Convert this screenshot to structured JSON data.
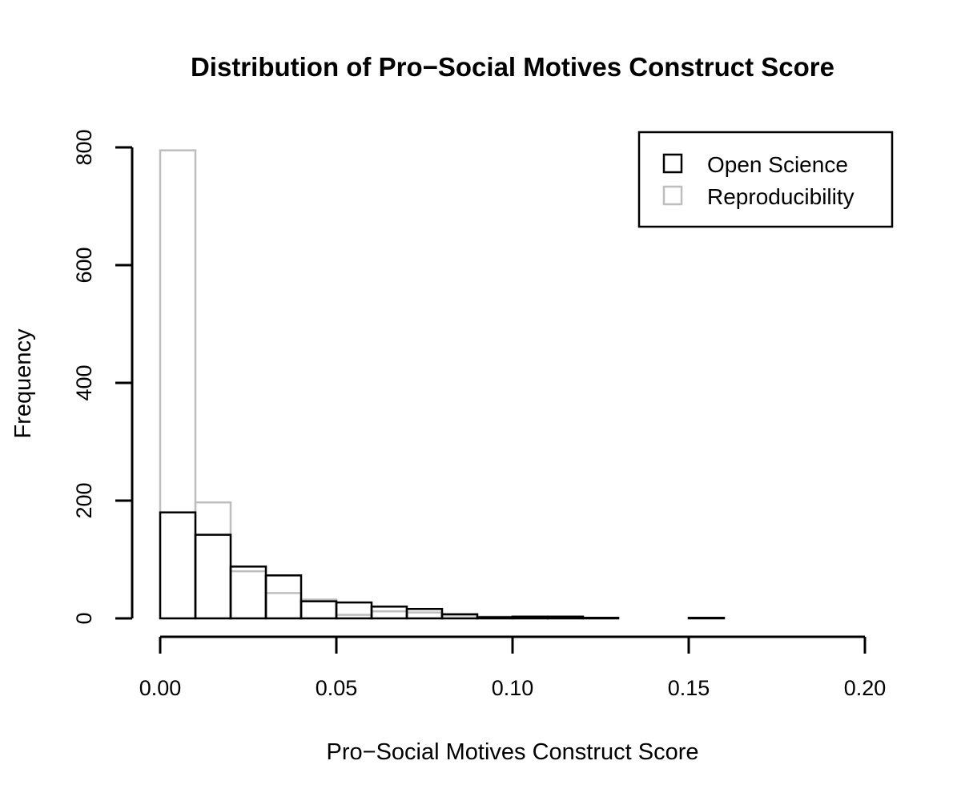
{
  "chart_data": {
    "type": "bar",
    "title": "Distribution of Pro−Social Motives Construct Score",
    "xlabel": "Pro−Social Motives Construct Score",
    "ylabel": "Frequency",
    "xlim": [
      0,
      0.2
    ],
    "ylim": [
      0,
      800
    ],
    "x_ticks": [
      "0.00",
      "0.05",
      "0.10",
      "0.15",
      "0.20"
    ],
    "y_ticks": [
      "0",
      "200",
      "400",
      "600",
      "800"
    ],
    "bin_edges": [
      0.0,
      0.01,
      0.02,
      0.03,
      0.04,
      0.05,
      0.06,
      0.07,
      0.08,
      0.09,
      0.1,
      0.11,
      0.12,
      0.13,
      0.14,
      0.15,
      0.16,
      0.17,
      0.18,
      0.19,
      0.2
    ],
    "series": [
      {
        "name": "Reproducibility",
        "color": "#bebebe",
        "values": [
          795,
          197,
          80,
          43,
          32,
          6,
          12,
          10,
          5,
          3,
          2,
          1,
          1,
          0,
          0,
          0,
          0,
          0,
          0,
          0
        ]
      },
      {
        "name": "Open Science",
        "color": "#000000",
        "values": [
          180,
          142,
          88,
          73,
          29,
          27,
          20,
          16,
          7,
          2,
          3,
          3,
          1,
          0,
          0,
          1,
          0,
          0,
          0,
          0
        ]
      }
    ],
    "legend": {
      "position": "top-right",
      "entries": [
        "Open Science",
        "Reproducibility"
      ]
    },
    "grid": false
  }
}
